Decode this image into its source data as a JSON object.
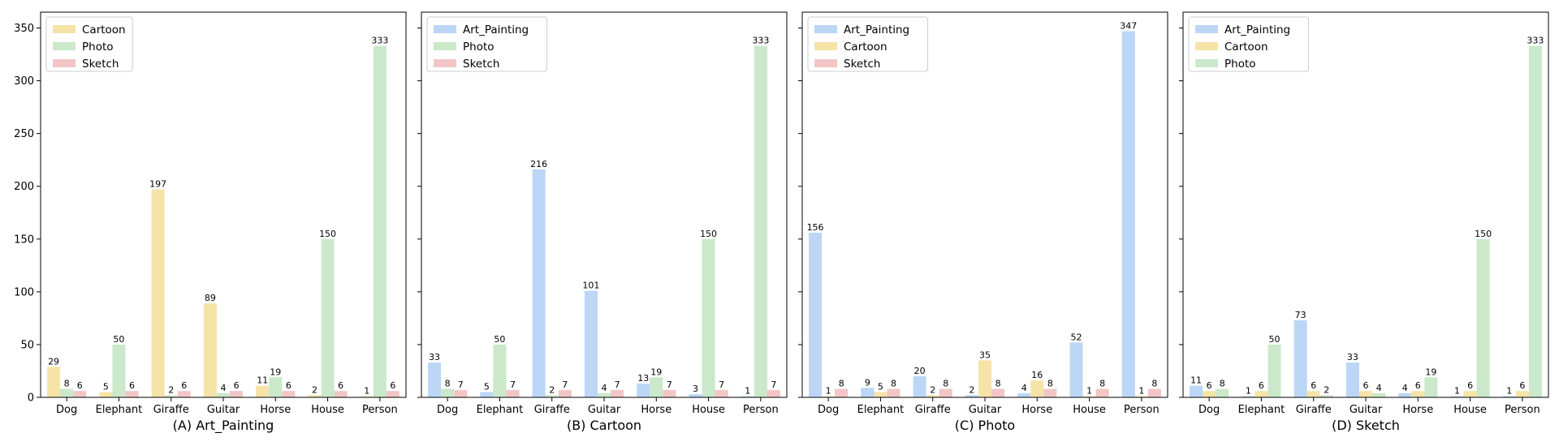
{
  "chart_data": [
    {
      "type": "bar",
      "xlabel": "(A) Art_Painting",
      "categories": [
        "Dog",
        "Elephant",
        "Giraffe",
        "Guitar",
        "Horse",
        "House",
        "Person"
      ],
      "ylim": [
        0,
        365
      ],
      "yticks": [
        0,
        50,
        100,
        150,
        200,
        250,
        300,
        350
      ],
      "legend_position": "top-left",
      "series": [
        {
          "name": "Cartoon",
          "color": "#f5e3a8",
          "values": [
            29,
            5,
            197,
            89,
            11,
            2,
            1
          ]
        },
        {
          "name": "Photo",
          "color": "#cbe8cb",
          "values": [
            8,
            50,
            2,
            4,
            19,
            150,
            333
          ]
        },
        {
          "name": "Sketch",
          "color": "#f2c6c6",
          "values": [
            6,
            6,
            6,
            6,
            6,
            6,
            6
          ]
        }
      ]
    },
    {
      "type": "bar",
      "xlabel": "(B) Cartoon",
      "categories": [
        "Dog",
        "Elephant",
        "Giraffe",
        "Guitar",
        "Horse",
        "House",
        "Person"
      ],
      "ylim": [
        0,
        365
      ],
      "yticks": [
        0,
        50,
        100,
        150,
        200,
        250,
        300,
        350
      ],
      "legend_position": "top-left",
      "series": [
        {
          "name": "Art_Painting",
          "color": "#bcd6f6",
          "values": [
            33,
            5,
            216,
            101,
            13,
            3,
            1
          ]
        },
        {
          "name": "Photo",
          "color": "#cbe8cb",
          "values": [
            8,
            50,
            2,
            4,
            19,
            150,
            333
          ]
        },
        {
          "name": "Sketch",
          "color": "#f2c6c6",
          "values": [
            7,
            7,
            7,
            7,
            7,
            7,
            7
          ]
        }
      ]
    },
    {
      "type": "bar",
      "xlabel": "(C) Photo",
      "categories": [
        "Dog",
        "Elephant",
        "Giraffe",
        "Guitar",
        "Horse",
        "House",
        "Person"
      ],
      "ylim": [
        0,
        365
      ],
      "yticks": [
        0,
        50,
        100,
        150,
        200,
        250,
        300,
        350
      ],
      "legend_position": "top-left",
      "series": [
        {
          "name": "Art_Painting",
          "color": "#bcd6f6",
          "values": [
            156,
            9,
            20,
            2,
            4,
            52,
            347
          ]
        },
        {
          "name": "Cartoon",
          "color": "#f5e3a8",
          "values": [
            1,
            5,
            2,
            35,
            16,
            1,
            1
          ]
        },
        {
          "name": "Sketch",
          "color": "#f2c6c6",
          "values": [
            8,
            8,
            8,
            8,
            8,
            8,
            8
          ]
        }
      ]
    },
    {
      "type": "bar",
      "xlabel": "(D) Sketch",
      "categories": [
        "Dog",
        "Elephant",
        "Giraffe",
        "Guitar",
        "Horse",
        "House",
        "Person"
      ],
      "ylim": [
        0,
        365
      ],
      "yticks": [
        0,
        50,
        100,
        150,
        200,
        250,
        300,
        350
      ],
      "legend_position": "top-left",
      "series": [
        {
          "name": "Art_Painting",
          "color": "#bcd6f6",
          "values": [
            11,
            1,
            73,
            33,
            4,
            1,
            1
          ]
        },
        {
          "name": "Cartoon",
          "color": "#f5e3a8",
          "values": [
            6,
            6,
            6,
            6,
            6,
            6,
            6
          ]
        },
        {
          "name": "Photo",
          "color": "#cbe8cb",
          "values": [
            8,
            50,
            2,
            4,
            19,
            150,
            333
          ]
        }
      ]
    }
  ]
}
